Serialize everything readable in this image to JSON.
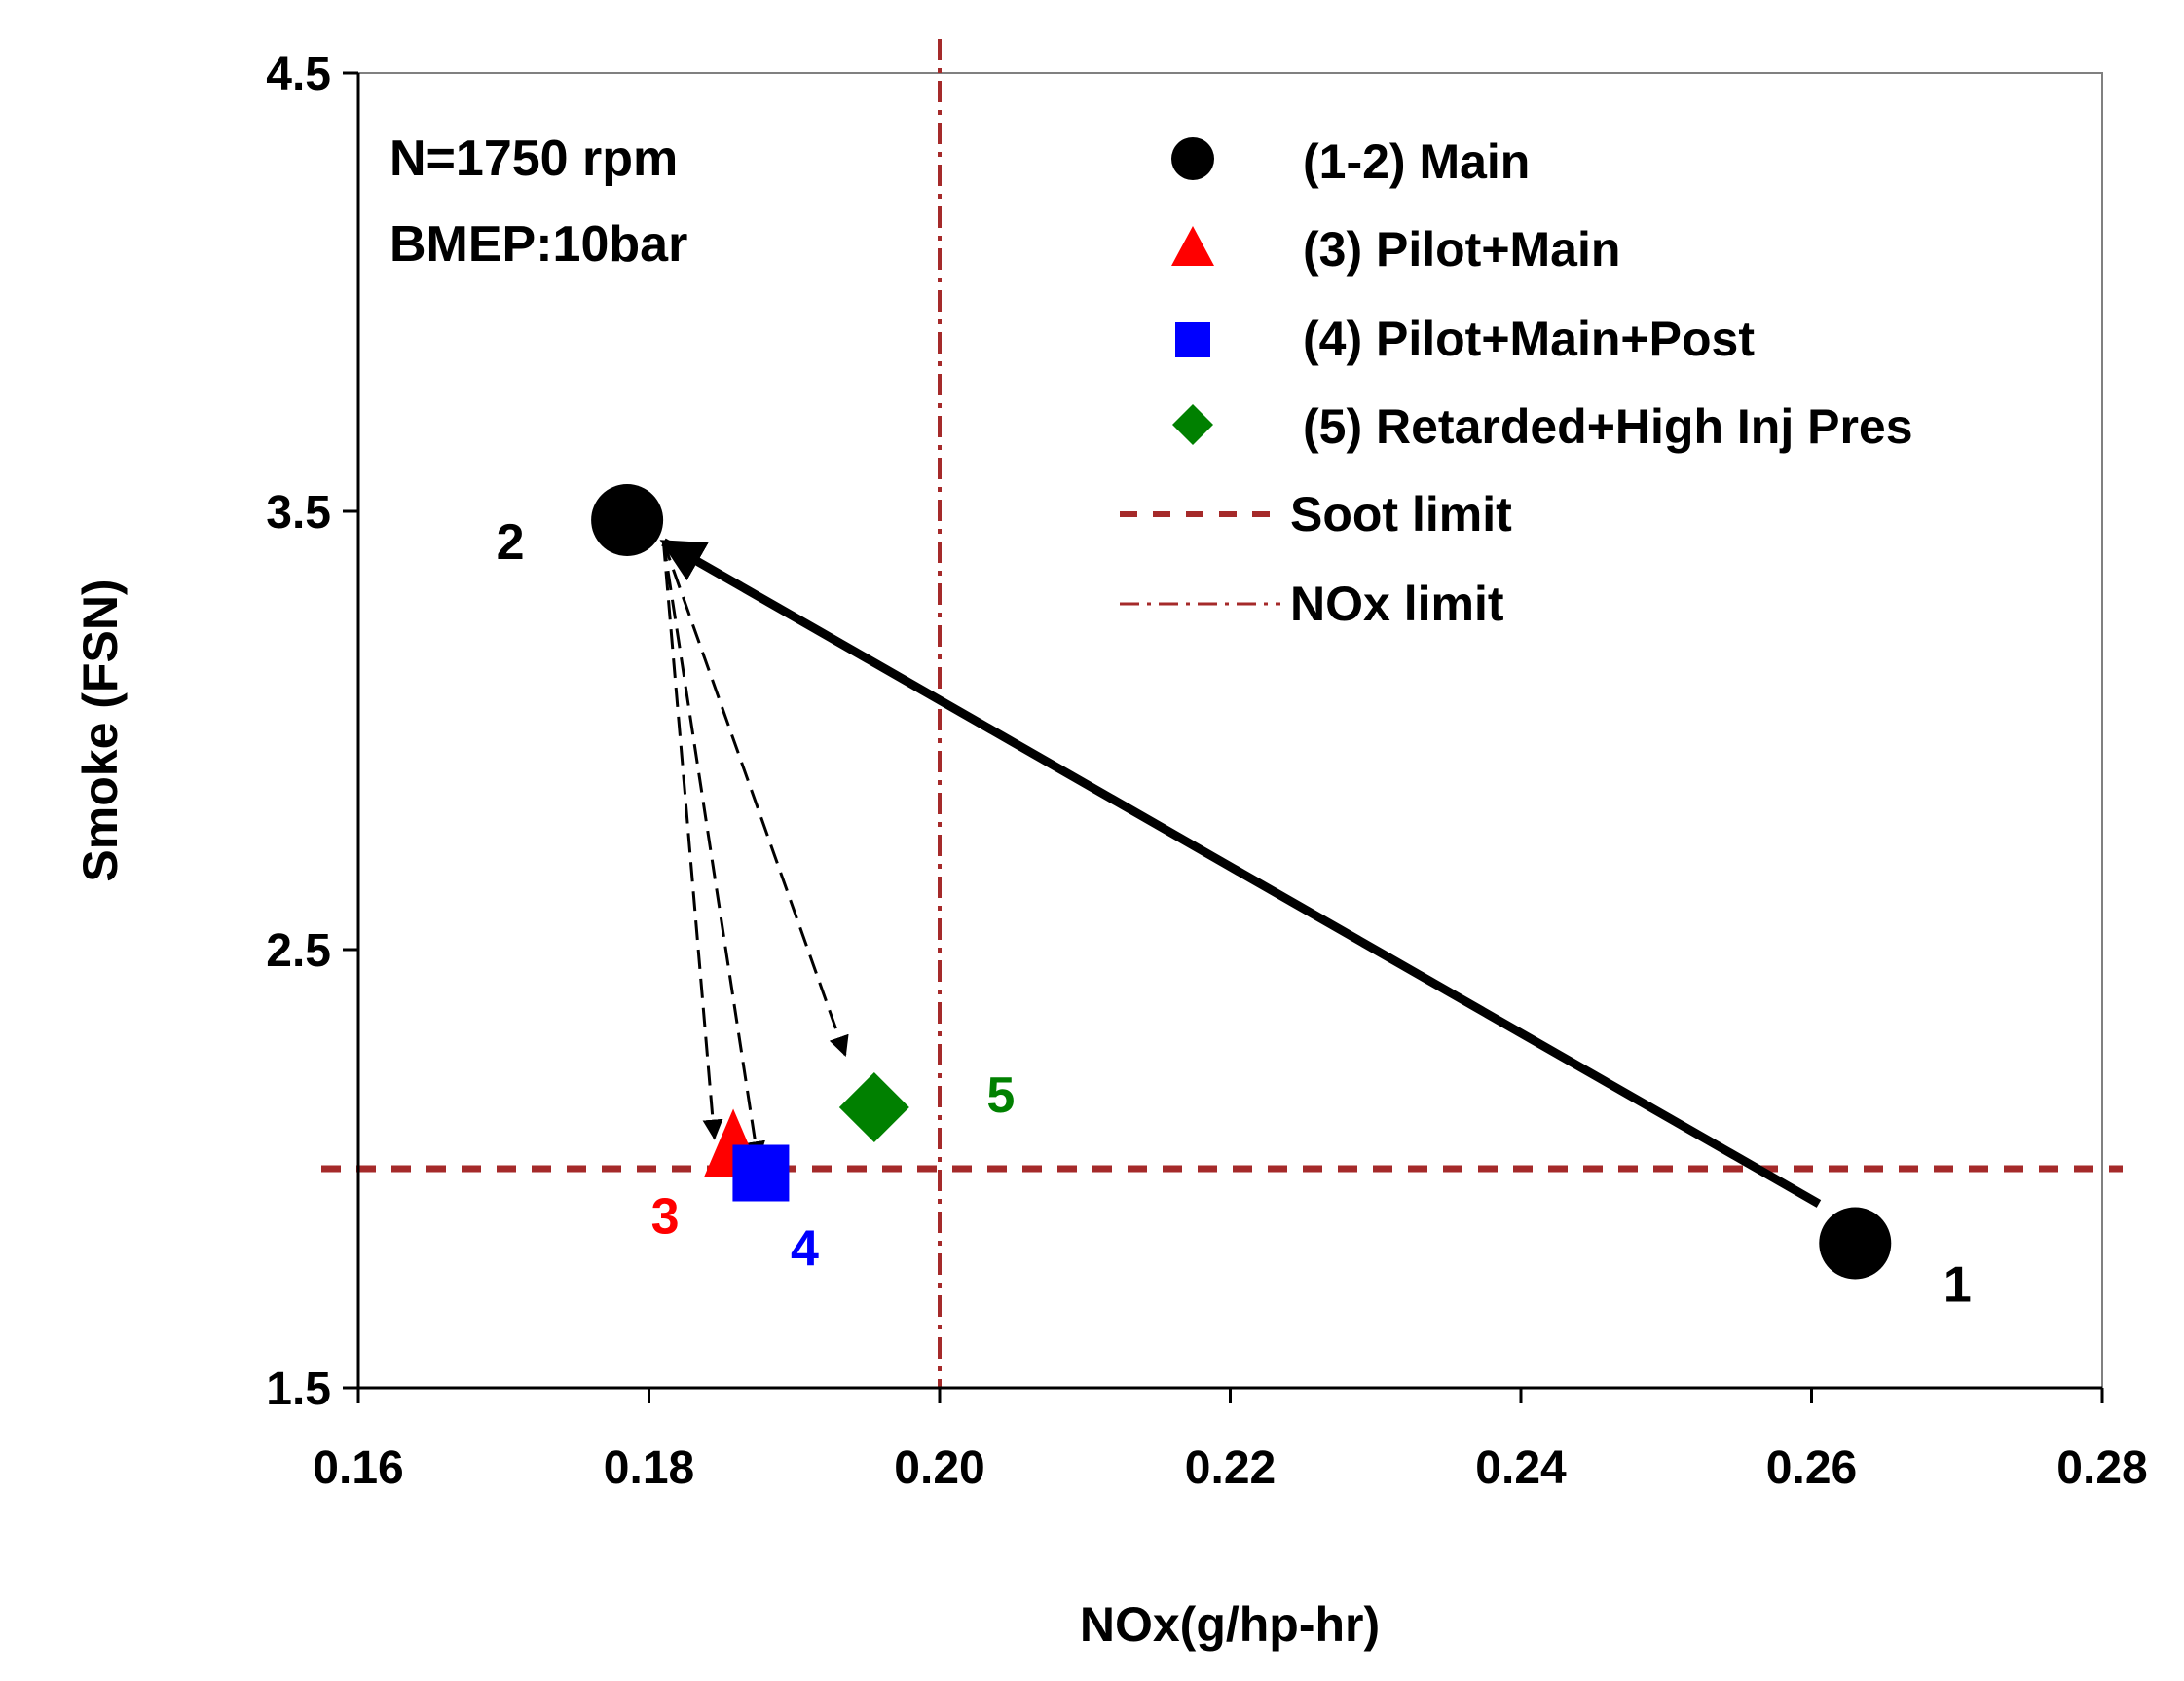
{
  "chart_data": {
    "type": "scatter",
    "title": "",
    "xlabel": "NOx(g/hp-hr)",
    "ylabel": "Smoke (FSN)",
    "xlim": [
      0.16,
      0.28
    ],
    "ylim": [
      1.5,
      4.5
    ],
    "x_ticks": [
      "0.16",
      "0.18",
      "0.20",
      "0.22",
      "0.24",
      "0.26",
      "0.28"
    ],
    "y_ticks": [
      "1.5",
      "2.5",
      "3.5",
      "4.5"
    ],
    "x_tick_values": [
      0.16,
      0.18,
      0.2,
      0.22,
      0.24,
      0.26,
      0.28
    ],
    "y_tick_values": [
      1.5,
      2.5,
      3.5,
      4.5
    ],
    "grid": false,
    "legend_position": "top-right",
    "annotations": [
      "N=1750 rpm",
      "BMEP:10bar"
    ],
    "series": [
      {
        "name": "(1-2)  Main",
        "marker": "circle",
        "color": "#000000",
        "points": [
          {
            "label": "1",
            "x": 0.263,
            "y": 1.83
          },
          {
            "label": "2",
            "x": 0.1785,
            "y": 3.48
          }
        ]
      },
      {
        "name": "(3)  Pilot+Main",
        "marker": "triangle",
        "color": "#ff0000",
        "points": [
          {
            "label": "3",
            "x": 0.1858,
            "y": 2.03
          }
        ]
      },
      {
        "name": "(4)  Pilot+Main+Post",
        "marker": "square",
        "color": "#0000ff",
        "points": [
          {
            "label": "4",
            "x": 0.1877,
            "y": 1.99
          }
        ]
      },
      {
        "name": "(5)  Retarded+High Inj Pres",
        "marker": "diamond",
        "color": "#008000",
        "points": [
          {
            "label": "5",
            "x": 0.1955,
            "y": 2.14
          }
        ]
      }
    ],
    "reference_lines": [
      {
        "name": "Soot limit",
        "orientation": "horizontal",
        "value": 2.0,
        "style": "dashed",
        "color": "#a52a2a"
      },
      {
        "name": "NOx limit",
        "orientation": "vertical",
        "value": 0.2,
        "style": "dash-dot",
        "color": "#a52a2a"
      }
    ],
    "arrows": [
      {
        "from": [
          0.2605,
          1.92
        ],
        "to": [
          0.181,
          3.43
        ],
        "style": "solid"
      },
      {
        "from": [
          0.181,
          3.43
        ],
        "to": [
          0.1845,
          2.07
        ],
        "style": "dashed"
      },
      {
        "from": [
          0.181,
          3.43
        ],
        "to": [
          0.1875,
          2.02
        ],
        "style": "dashed"
      },
      {
        "from": [
          0.181,
          3.43
        ],
        "to": [
          0.1935,
          2.26
        ],
        "style": "dashed"
      }
    ]
  }
}
